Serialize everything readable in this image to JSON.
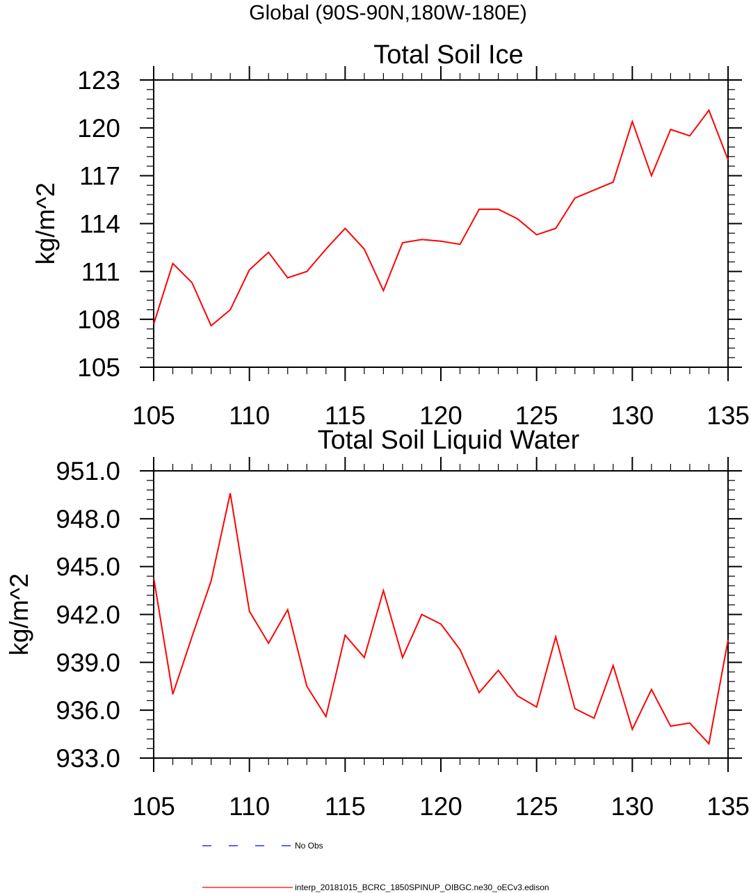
{
  "figure": {
    "suptitle": "Global (90S-90N,180W-180E)"
  },
  "colors": {
    "model_line": "#ff0000",
    "obs_line": "#0000ff",
    "axes": "#000000"
  },
  "legend": [
    {
      "label": "No Obs",
      "color": "#0000ff",
      "dash": "dashed"
    },
    {
      "label": "interp_20181015_BCRC_1850SPINUP_OIBGC.ne30_oECv3.edison",
      "color": "#ff0000",
      "dash": "solid"
    }
  ],
  "chart_data": [
    {
      "type": "line",
      "title": "Total Soil Ice",
      "xlabel": "",
      "ylabel": "kg/m^2",
      "xlim": [
        105,
        135
      ],
      "ylim": [
        105,
        123
      ],
      "x_ticks": [
        105,
        110,
        115,
        120,
        125,
        130,
        135
      ],
      "x_tick_labels": [
        "105",
        "110",
        "115",
        "120",
        "125",
        "130",
        "135"
      ],
      "y_ticks": [
        105,
        108,
        111,
        114,
        117,
        120,
        123
      ],
      "y_tick_labels": [
        "105",
        "108",
        "111",
        "114",
        "117",
        "120",
        "123"
      ],
      "x_minor_step": 1,
      "y_minor_step": 0.6,
      "grid": false,
      "series": [
        {
          "name": "interp_20181015_BCRC_1850SPINUP_OIBGC.ne30_oECv3.edison",
          "color": "#ff0000",
          "x": [
            105,
            106,
            107,
            108,
            109,
            110,
            111,
            112,
            113,
            114,
            115,
            116,
            117,
            118,
            119,
            120,
            121,
            122,
            123,
            124,
            125,
            126,
            127,
            128,
            129,
            130,
            131,
            132,
            133,
            134,
            135
          ],
          "values": [
            107.7,
            111.5,
            110.3,
            107.6,
            108.6,
            111.1,
            112.2,
            110.6,
            111.0,
            112.4,
            113.7,
            112.4,
            109.8,
            112.8,
            113.0,
            112.9,
            112.7,
            114.9,
            114.9,
            114.3,
            113.3,
            113.7,
            115.6,
            116.1,
            116.6,
            120.4,
            117.0,
            119.9,
            119.5,
            121.1,
            118.0
          ]
        }
      ]
    },
    {
      "type": "line",
      "title": "Total Soil Liquid Water",
      "xlabel": "",
      "ylabel": "kg/m^2",
      "xlim": [
        105,
        135
      ],
      "ylim": [
        933,
        951
      ],
      "x_ticks": [
        105,
        110,
        115,
        120,
        125,
        130,
        135
      ],
      "x_tick_labels": [
        "105",
        "110",
        "115",
        "120",
        "125",
        "130",
        "135"
      ],
      "y_ticks": [
        933,
        936,
        939,
        942,
        945,
        948,
        951
      ],
      "y_tick_labels": [
        "933.0",
        "936.0",
        "939.0",
        "942.0",
        "945.0",
        "948.0",
        "951.0"
      ],
      "x_minor_step": 1,
      "y_minor_step": 0.6,
      "grid": false,
      "series": [
        {
          "name": "interp_20181015_BCRC_1850SPINUP_OIBGC.ne30_oECv3.edison",
          "color": "#ff0000",
          "x": [
            105,
            106,
            107,
            108,
            109,
            110,
            111,
            112,
            113,
            114,
            115,
            116,
            117,
            118,
            119,
            120,
            121,
            122,
            123,
            124,
            125,
            126,
            127,
            128,
            129,
            130,
            131,
            132,
            133,
            134,
            135
          ],
          "values": [
            944.3,
            937.0,
            940.6,
            944.1,
            949.6,
            942.2,
            940.2,
            942.3,
            937.5,
            935.6,
            940.7,
            939.3,
            943.5,
            939.3,
            942.0,
            941.4,
            939.8,
            937.1,
            938.5,
            936.9,
            936.2,
            940.6,
            936.1,
            935.5,
            938.8,
            934.8,
            937.3,
            935.0,
            935.2,
            933.9,
            940.4
          ]
        }
      ]
    }
  ]
}
